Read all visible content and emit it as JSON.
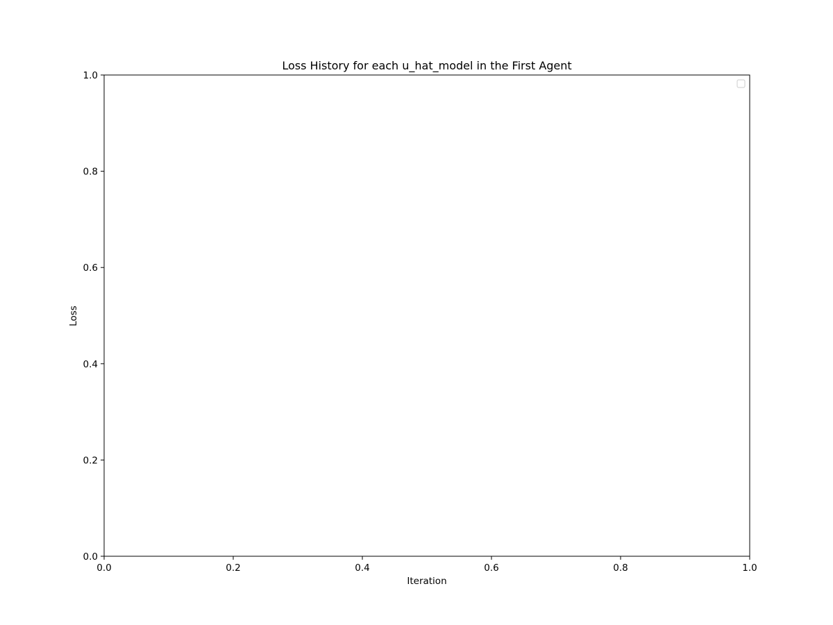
{
  "chart_data": {
    "type": "line",
    "title": "Loss History for each u_hat_model in the First Agent",
    "xlabel": "Iteration",
    "ylabel": "Loss",
    "xlim": [
      0.0,
      1.0
    ],
    "ylim": [
      0.0,
      1.0
    ],
    "x_ticks": [
      "0.0",
      "0.2",
      "0.4",
      "0.6",
      "0.8",
      "1.0"
    ],
    "y_ticks": [
      "0.0",
      "0.2",
      "0.4",
      "0.6",
      "0.8",
      "1.0"
    ],
    "series": [],
    "grid": false,
    "legend": {
      "placement": "upper right",
      "entries": []
    },
    "colors": {
      "axes": "#000000",
      "legend_border": "#cccccc",
      "background": "#ffffff"
    }
  }
}
